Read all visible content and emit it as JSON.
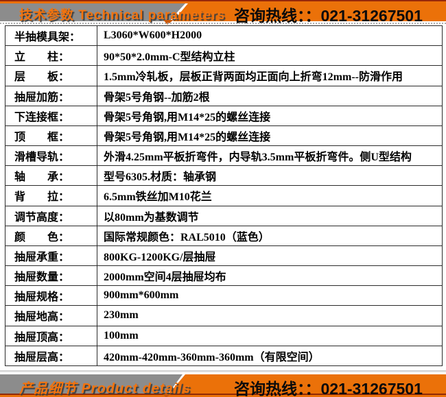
{
  "colors": {
    "banner_orange": "#EB7109",
    "banner_gray": "#8C8C8C",
    "accent_orange_text": "#F2730E",
    "dark_red_edge": "#8F2A06",
    "table_border": "#2B2B2B"
  },
  "header": {
    "title": "技术参数 Technical parameters",
    "hotline": "咨询热线：：021-31267501"
  },
  "footer": {
    "title": "产品细节 Product details",
    "hotline": "咨询热线：：021-31267501"
  },
  "table": {
    "rows": [
      {
        "label": "半抽模具架：",
        "value": "L3060*W600*H2000"
      },
      {
        "label": "立　　柱：",
        "value": "90*50*2.0mm-C型结构立柱"
      },
      {
        "label": "层　　板：",
        "value": "1.5mm冷轧板，层板正背两面均正面向上折弯12mm--防滑作用"
      },
      {
        "label": "抽屉加筋：",
        "value": "骨架5号角钢--加筋2根"
      },
      {
        "label": "下连接框：",
        "value": "骨架5号角钢,用M14*25的螺丝连接"
      },
      {
        "label": "顶　　框：",
        "value": "骨架5号角钢,用M14*25的螺丝连接"
      },
      {
        "label": "滑槽导轨：",
        "value": "外滑4.25mm平板折弯件，内导轨3.5mm平板折弯件。侧U型结构"
      },
      {
        "label": "轴　　承：",
        "value": "型号6305.材质：轴承钢"
      },
      {
        "label": "背　　拉：",
        "value": "6.5mm铁丝加M10花兰"
      },
      {
        "label": "调节高度：",
        "value": "以80mm为基数调节"
      },
      {
        "label": "颜　　色：",
        "value": "国际常规颜色：RAL5010（蓝色）"
      },
      {
        "label": "抽屉承重：",
        "value": "800KG-1200KG/层抽屉"
      },
      {
        "label": "抽屉数量：",
        "value": "2000mm空间4层抽屉均布"
      },
      {
        "label": "抽屉规格：",
        "value": "900mm*600mm"
      },
      {
        "label": "抽屉地高：",
        "value": "230mm"
      },
      {
        "label": "抽屉顶高：",
        "value": "100mm"
      },
      {
        "label": "抽屉层高：",
        "value": "420mm-420mm-360mm-360mm（有限空间）"
      }
    ]
  }
}
